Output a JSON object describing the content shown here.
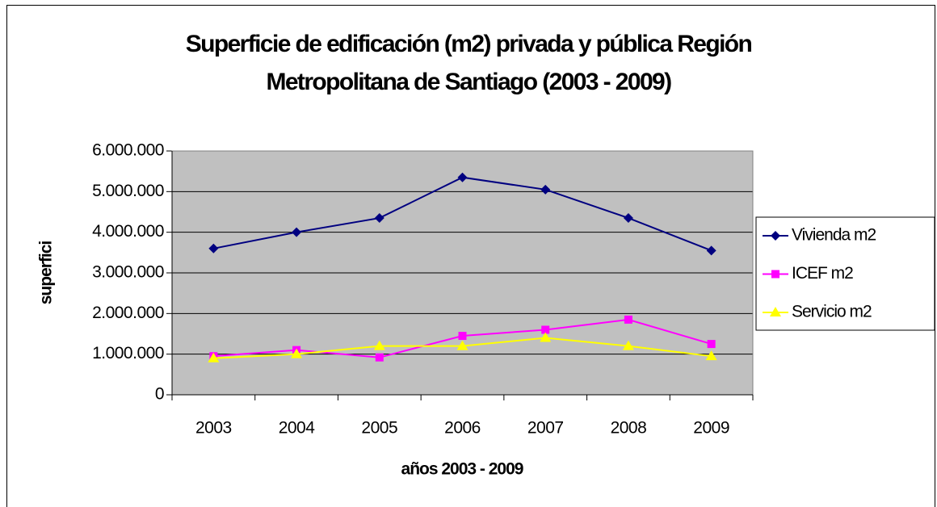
{
  "chart_data": {
    "type": "line",
    "title": [
      "Superficie de edificación (m2) privada y pública Región",
      "Metropolitana de Santiago (2003 - 2009)"
    ],
    "x_label": "años 2003 - 2009",
    "y_label": "superfici",
    "categories": [
      "2003",
      "2004",
      "2005",
      "2006",
      "2007",
      "2008",
      "2009"
    ],
    "series": [
      {
        "name": "Vivienda m2",
        "color": "#000080",
        "marker": "diamond",
        "values": [
          3600000,
          4000000,
          4350000,
          5350000,
          5050000,
          4350000,
          3550000
        ]
      },
      {
        "name": "ICEF m2",
        "color": "#ff00ff",
        "marker": "square",
        "values": [
          950000,
          1100000,
          920000,
          1450000,
          1600000,
          1850000,
          1250000
        ]
      },
      {
        "name": "Servicio m2",
        "color": "#ffff00",
        "marker": "triangle",
        "values": [
          900000,
          1000000,
          1200000,
          1200000,
          1400000,
          1200000,
          950000
        ]
      }
    ],
    "ylim": [
      0,
      6000000
    ],
    "yticks": [
      0,
      {
        "value": 1000000,
        "label": "1.000.000"
      },
      {
        "value": 2000000,
        "label": "2.000.000"
      },
      {
        "value": 3000000,
        "label": "3.000.000"
      },
      {
        "value": 4000000,
        "label": "4.000.000"
      },
      {
        "value": 5000000,
        "label": "5.000.000"
      },
      {
        "value": 6000000,
        "label": "6.000.000"
      }
    ],
    "grid": true,
    "plot_background": "#c0c0c0",
    "legend": "right"
  }
}
